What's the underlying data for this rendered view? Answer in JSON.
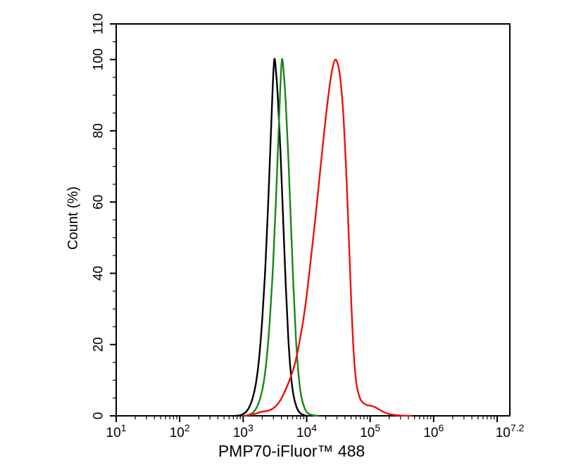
{
  "figure": {
    "background": "#ffffff",
    "axis_color": "#000000"
  },
  "chart_data": {
    "type": "line",
    "subtype": "flow-cytometry-histogram-overlay",
    "title": "",
    "xlabel": "PMP70-iFluor™ 488",
    "ylabel": "Count  (%)",
    "x_scale": "log10",
    "x_log_range": [
      1,
      7.2
    ],
    "ylim": [
      0,
      110
    ],
    "grid": false,
    "legend": null,
    "y_axis": {
      "major_ticks": [
        0,
        20,
        40,
        60,
        80,
        100,
        110
      ],
      "minor_step": 5
    },
    "x_axis": {
      "major_ticks_log": [
        1,
        2,
        3,
        4,
        5,
        6,
        7
      ],
      "minor_mantissas": [
        2,
        3,
        4,
        5,
        6,
        7,
        8,
        9
      ],
      "minor_decades": [
        1,
        2,
        3,
        4,
        5,
        6
      ],
      "tick_labels": [
        {
          "log": 1,
          "base": "10",
          "exp": "1"
        },
        {
          "log": 2,
          "base": "10",
          "exp": "2"
        },
        {
          "log": 3,
          "base": "10",
          "exp": "3"
        },
        {
          "log": 4,
          "base": "10",
          "exp": "4"
        },
        {
          "log": 5,
          "base": "10",
          "exp": "5"
        },
        {
          "log": 6,
          "base": "10",
          "exp": "6"
        },
        {
          "log": 7.2,
          "base": "10",
          "exp": "7.2"
        }
      ]
    },
    "series": [
      {
        "name": "black-curve",
        "color": "#000000",
        "peak_log": 3.49,
        "peak_pct": 100,
        "points": [
          [
            2.88,
            0
          ],
          [
            2.95,
            0.15
          ],
          [
            3.0,
            0.5
          ],
          [
            3.05,
            1.2
          ],
          [
            3.1,
            2.6
          ],
          [
            3.15,
            5
          ],
          [
            3.2,
            9
          ],
          [
            3.25,
            16
          ],
          [
            3.3,
            27
          ],
          [
            3.35,
            42
          ],
          [
            3.39,
            58
          ],
          [
            3.43,
            76
          ],
          [
            3.46,
            90
          ],
          [
            3.49,
            100
          ],
          [
            3.52,
            96
          ],
          [
            3.55,
            88
          ],
          [
            3.59,
            73
          ],
          [
            3.63,
            55
          ],
          [
            3.67,
            37
          ],
          [
            3.71,
            22
          ],
          [
            3.75,
            12
          ],
          [
            3.79,
            6
          ],
          [
            3.84,
            2.5
          ],
          [
            3.89,
            0.9
          ],
          [
            3.94,
            0.3
          ],
          [
            4.0,
            0
          ]
        ]
      },
      {
        "name": "green-curve",
        "color": "#178717",
        "peak_log": 3.61,
        "peak_pct": 100,
        "points": [
          [
            3.0,
            0
          ],
          [
            3.07,
            0.15
          ],
          [
            3.12,
            0.5
          ],
          [
            3.17,
            1.2
          ],
          [
            3.22,
            2.6
          ],
          [
            3.27,
            5
          ],
          [
            3.32,
            9
          ],
          [
            3.37,
            16
          ],
          [
            3.42,
            27
          ],
          [
            3.47,
            42
          ],
          [
            3.51,
            58
          ],
          [
            3.55,
            76
          ],
          [
            3.58,
            90
          ],
          [
            3.61,
            100
          ],
          [
            3.64,
            96
          ],
          [
            3.67,
            88
          ],
          [
            3.71,
            73
          ],
          [
            3.75,
            55
          ],
          [
            3.79,
            37
          ],
          [
            3.83,
            22
          ],
          [
            3.87,
            12
          ],
          [
            3.91,
            6
          ],
          [
            3.96,
            2.5
          ],
          [
            4.01,
            0.9
          ],
          [
            4.07,
            0.3
          ],
          [
            4.13,
            0.1
          ],
          [
            4.18,
            0
          ]
        ]
      },
      {
        "name": "red-curve",
        "color": "#e8120e",
        "peak_log": 4.45,
        "peak_pct": 100,
        "points": [
          [
            3.02,
            0
          ],
          [
            3.1,
            0.2
          ],
          [
            3.2,
            0.6
          ],
          [
            3.28,
            1.1
          ],
          [
            3.35,
            1.3
          ],
          [
            3.42,
            1.6
          ],
          [
            3.5,
            2.5
          ],
          [
            3.58,
            4.2
          ],
          [
            3.66,
            7
          ],
          [
            3.74,
            10.5
          ],
          [
            3.82,
            15
          ],
          [
            3.9,
            22
          ],
          [
            3.98,
            31
          ],
          [
            4.06,
            43
          ],
          [
            4.14,
            56
          ],
          [
            4.22,
            70
          ],
          [
            4.29,
            82
          ],
          [
            4.35,
            91
          ],
          [
            4.4,
            97
          ],
          [
            4.45,
            100
          ],
          [
            4.5,
            98
          ],
          [
            4.54,
            93
          ],
          [
            4.58,
            84
          ],
          [
            4.62,
            70
          ],
          [
            4.66,
            52
          ],
          [
            4.7,
            33
          ],
          [
            4.74,
            18
          ],
          [
            4.78,
            9.5
          ],
          [
            4.83,
            5.4
          ],
          [
            4.88,
            3.8
          ],
          [
            4.95,
            3.0
          ],
          [
            5.02,
            2.8
          ],
          [
            5.08,
            2.4
          ],
          [
            5.15,
            1.7
          ],
          [
            5.22,
            1.0
          ],
          [
            5.3,
            0.5
          ],
          [
            5.4,
            0.2
          ],
          [
            5.52,
            0.05
          ],
          [
            5.65,
            0
          ]
        ]
      }
    ]
  }
}
